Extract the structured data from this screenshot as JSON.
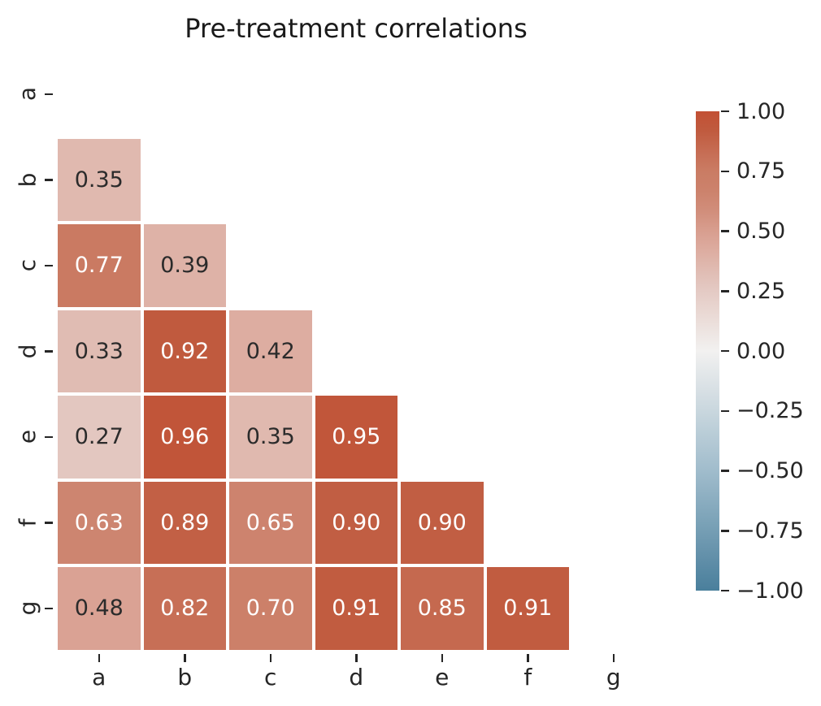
{
  "title": "Pre-treatment correlations",
  "colors": {
    "background": "#ffffff",
    "title_text": "#1a1a1a",
    "tick_text": "#262626",
    "annot_dark": "#2b2b2b",
    "annot_light": "#ffffff",
    "cell_gap": "#ffffff"
  },
  "chart_data": {
    "type": "heatmap",
    "title": "Pre-treatment correlations",
    "x_categories": [
      "a",
      "b",
      "c",
      "d",
      "e",
      "f",
      "g"
    ],
    "y_categories": [
      "a",
      "b",
      "c",
      "d",
      "e",
      "f",
      "g"
    ],
    "mask": "upper triangle and diagonal hidden (only pairs below diagonal shown)",
    "annot_format": "0.00",
    "matrix": [
      [
        null,
        null,
        null,
        null,
        null,
        null,
        null
      ],
      [
        0.35,
        null,
        null,
        null,
        null,
        null,
        null
      ],
      [
        0.77,
        0.39,
        null,
        null,
        null,
        null,
        null
      ],
      [
        0.33,
        0.92,
        0.42,
        null,
        null,
        null,
        null
      ],
      [
        0.27,
        0.96,
        0.35,
        0.95,
        null,
        null,
        null
      ],
      [
        0.63,
        0.89,
        0.65,
        0.9,
        0.9,
        null,
        null
      ],
      [
        0.48,
        0.82,
        0.7,
        0.91,
        0.85,
        0.91,
        null
      ]
    ],
    "colormap": {
      "name": "diverging blue-white-red",
      "stops": [
        {
          "v": -1.0,
          "c": "#4a7f9c"
        },
        {
          "v": -0.5,
          "c": "#a0bccc"
        },
        {
          "v": 0.0,
          "c": "#f2f1f0"
        },
        {
          "v": 0.27,
          "c": "#e3c7c0"
        },
        {
          "v": 0.48,
          "c": "#daa294"
        },
        {
          "v": 0.63,
          "c": "#cd8570"
        },
        {
          "v": 0.77,
          "c": "#ca7a62"
        },
        {
          "v": 0.92,
          "c": "#c05a3e"
        },
        {
          "v": 1.0,
          "c": "#c25034"
        }
      ]
    },
    "colorbar": {
      "position": "right",
      "vmin": -1.0,
      "vmax": 1.0,
      "tick_labels": [
        "1.00",
        "0.75",
        "0.50",
        "0.25",
        "0.00",
        "−0.25",
        "−0.50",
        "−0.75",
        "−1.00"
      ]
    },
    "legend": null,
    "grid": false
  }
}
